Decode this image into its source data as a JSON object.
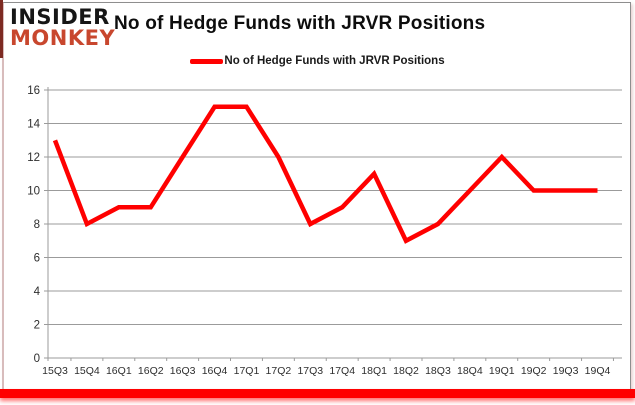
{
  "branding": {
    "line1": "INSIDER",
    "line2": "MONKEY"
  },
  "header": {
    "title": "No of Hedge Funds with JRVR Positions"
  },
  "legend": {
    "label": "No of Hedge Funds with JRVR Positions"
  },
  "colors": {
    "series": "#ff0000",
    "logo_primary": "#161616",
    "logo_accent": "#c8472e",
    "grid": "#9b9b9b",
    "axis": "#9b9b9b",
    "tick_text": "#2e2e2e",
    "accent_bar": "#ff0000",
    "accent_left": "#7d2a22"
  },
  "chart_data": {
    "type": "line",
    "title": "No of Hedge Funds with JRVR Positions",
    "categories": [
      "15Q3",
      "15Q4",
      "16Q1",
      "16Q2",
      "16Q3",
      "16Q4",
      "17Q1",
      "17Q2",
      "17Q3",
      "17Q4",
      "18Q1",
      "18Q2",
      "18Q3",
      "18Q4",
      "19Q1",
      "19Q2",
      "19Q3",
      "19Q4"
    ],
    "series": [
      {
        "name": "No of Hedge Funds with JRVR Positions",
        "color": "#ff0000",
        "values": [
          13,
          8,
          9,
          9,
          12,
          15,
          15,
          12,
          8,
          9,
          11,
          7,
          8,
          10,
          12,
          10,
          10,
          10
        ]
      }
    ],
    "xlabel": "",
    "ylabel": "",
    "ylim": [
      0,
      16
    ],
    "ytick_step": 2,
    "grid": true,
    "legend_position": "top"
  }
}
